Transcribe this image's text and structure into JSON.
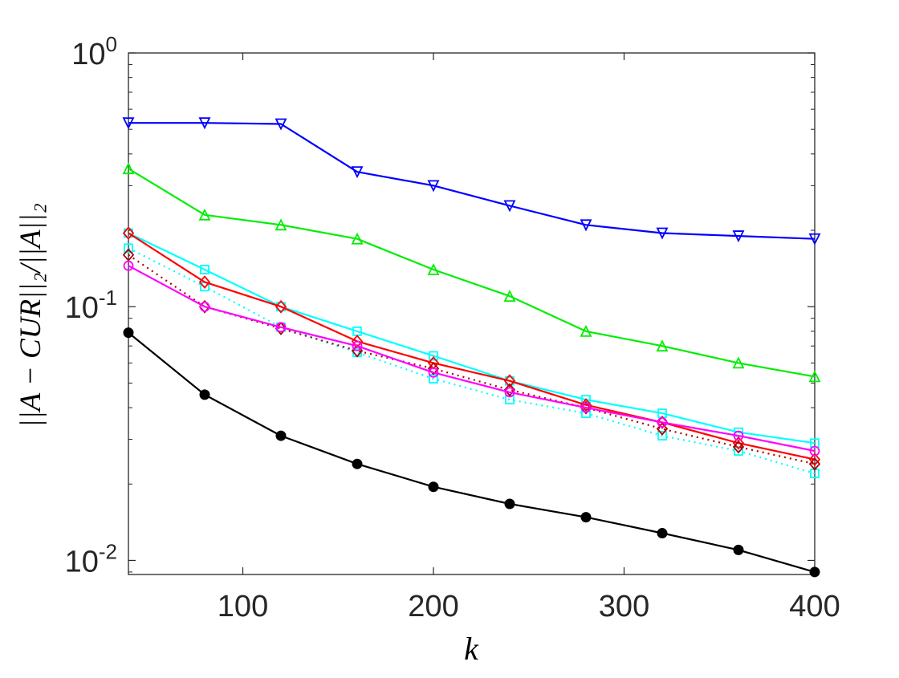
{
  "chart_data": {
    "type": "line",
    "title": "",
    "xlabel": "k",
    "ylabel": "||A − CUR||₂/||A||₂",
    "xlim": [
      40,
      400
    ],
    "ylim": [
      0.0088,
      1
    ],
    "yscale": "log",
    "x_ticks": [
      100,
      200,
      300,
      400
    ],
    "x_tick_labels": [
      "100",
      "200",
      "300",
      "400"
    ],
    "y_ticks": [
      0.01,
      0.1,
      1
    ],
    "y_tick_labels": [
      {
        "base": "10",
        "exp": "-2"
      },
      {
        "base": "10",
        "exp": "-1"
      },
      {
        "base": "10",
        "exp": "0"
      }
    ],
    "grid": false,
    "legend": "none",
    "x": [
      40,
      80,
      120,
      160,
      200,
      240,
      280,
      320,
      360,
      400
    ],
    "series": [
      {
        "color": "#0000ff",
        "marker": "triangle-down",
        "style": "solid",
        "values": [
          0.53,
          0.53,
          0.525,
          0.34,
          0.3,
          0.25,
          0.21,
          0.195,
          0.19,
          0.185
        ]
      },
      {
        "color": "#00ee00",
        "marker": "triangle-up",
        "style": "solid",
        "values": [
          0.35,
          0.23,
          0.21,
          0.185,
          0.14,
          0.11,
          0.08,
          0.07,
          0.06,
          0.053
        ]
      },
      {
        "color": "#00ffff",
        "marker": "square",
        "style": "solid",
        "values": [
          0.195,
          0.14,
          0.1,
          0.08,
          0.064,
          0.051,
          0.043,
          0.038,
          0.032,
          0.029
        ]
      },
      {
        "color": "#00ffff",
        "marker": "square",
        "style": "dotted",
        "values": [
          0.17,
          0.12,
          0.083,
          0.066,
          0.052,
          0.043,
          0.038,
          0.031,
          0.027,
          0.022
        ]
      },
      {
        "color": "#ff0000",
        "marker": "diamond",
        "style": "solid",
        "values": [
          0.195,
          0.125,
          0.1,
          0.073,
          0.06,
          0.051,
          0.041,
          0.035,
          0.029,
          0.025
        ]
      },
      {
        "color": "#aa0000",
        "marker": "diamond",
        "style": "dotted",
        "values": [
          0.16,
          0.1,
          0.082,
          0.067,
          0.057,
          0.047,
          0.04,
          0.033,
          0.028,
          0.024
        ]
      },
      {
        "color": "#ff00ff",
        "marker": "circle",
        "style": "solid",
        "values": [
          0.145,
          0.1,
          0.083,
          0.07,
          0.055,
          0.046,
          0.04,
          0.035,
          0.031,
          0.027
        ]
      },
      {
        "color": "#000000",
        "marker": "filled-circle",
        "style": "solid",
        "values": [
          0.079,
          0.045,
          0.031,
          0.024,
          0.0195,
          0.0167,
          0.0148,
          0.0128,
          0.011,
          0.009
        ]
      }
    ]
  }
}
